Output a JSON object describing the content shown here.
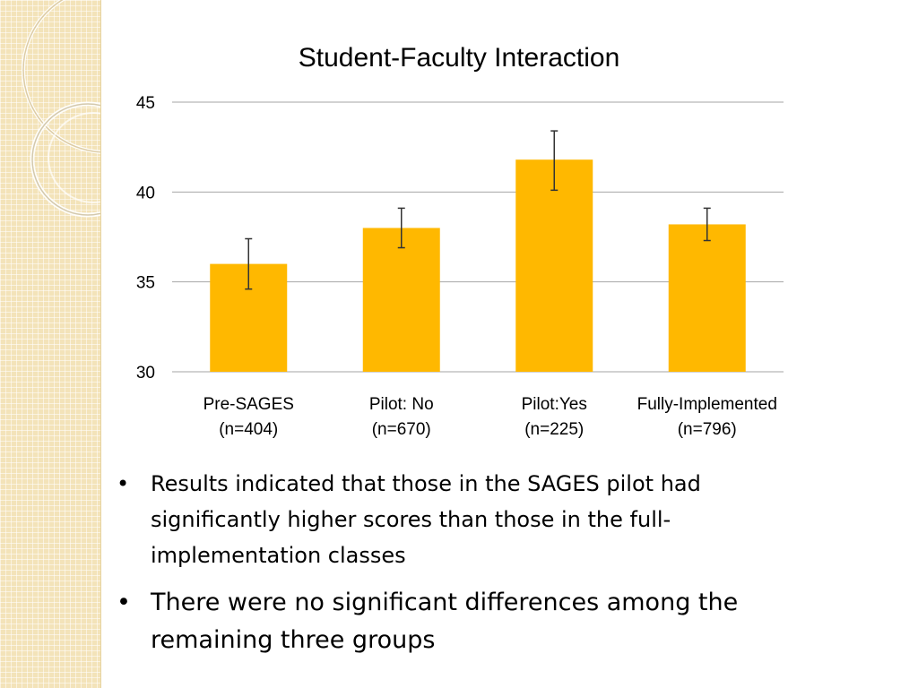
{
  "chart_data": {
    "type": "bar",
    "title": "Student-Faculty Interaction",
    "categories": [
      "Pre-SAGES\n(n=404)",
      "Pilot: No\n(n=670)",
      "Pilot:Yes\n(n=225)",
      "Fully-Implemented\n(n=796)"
    ],
    "values": [
      36.0,
      38.0,
      41.8,
      38.2
    ],
    "error_low": [
      34.6,
      36.9,
      40.1,
      37.3
    ],
    "error_high": [
      37.4,
      39.1,
      43.4,
      39.1
    ],
    "ylim": [
      30,
      45
    ],
    "yticks": [
      30,
      35,
      40,
      45
    ],
    "grid": true,
    "bar_color": "#FFB800",
    "xlabel": "",
    "ylabel": ""
  },
  "bullets": [
    "Results indicated that those in the SAGES pilot had significantly higher scores than those in the full-implementation classes",
    "There were no significant differences among the remaining three groups"
  ],
  "bullet_glyph": "•"
}
